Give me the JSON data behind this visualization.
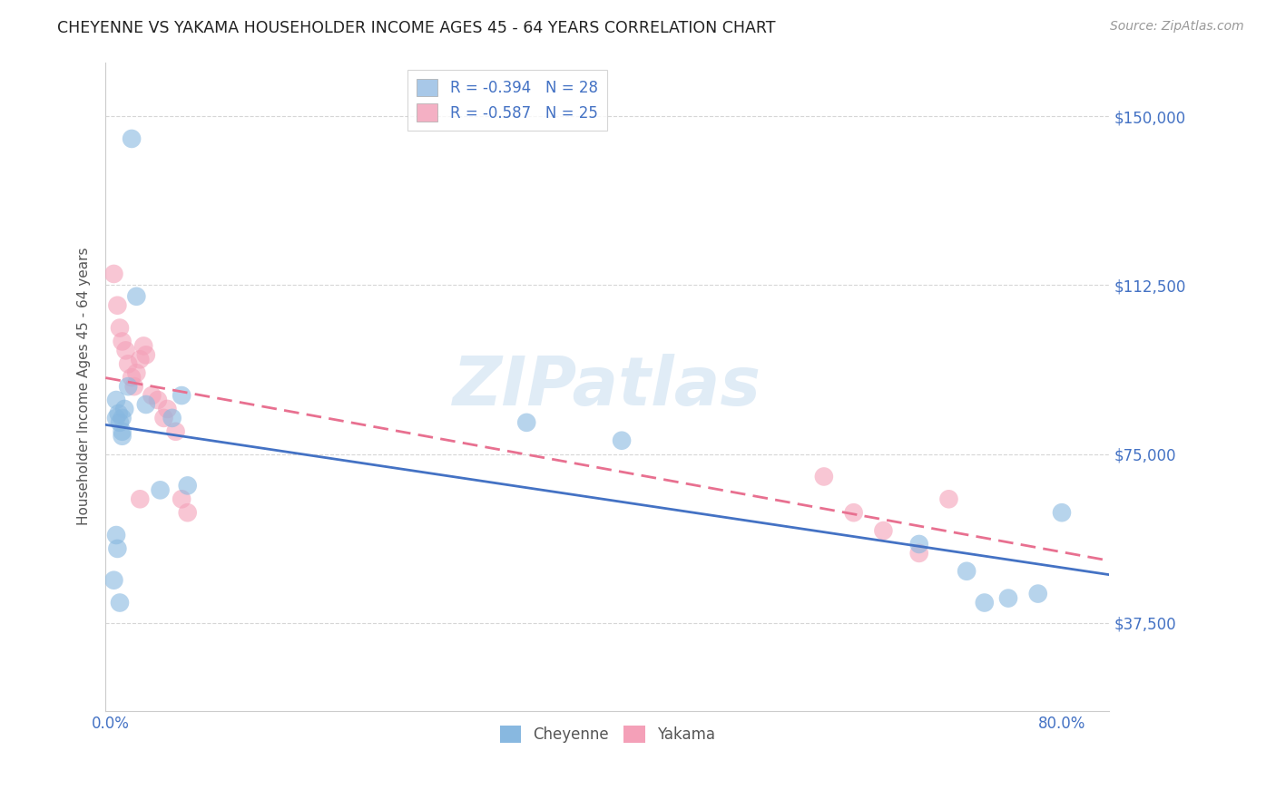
{
  "title": "CHEYENNE VS YAKAMA HOUSEHOLDER INCOME AGES 45 - 64 YEARS CORRELATION CHART",
  "source": "Source: ZipAtlas.com",
  "ylabel": "Householder Income Ages 45 - 64 years",
  "ytick_labels": [
    "$37,500",
    "$75,000",
    "$112,500",
    "$150,000"
  ],
  "ytick_values": [
    37500,
    75000,
    112500,
    150000
  ],
  "ymin": 18000,
  "ymax": 162000,
  "xmin": -0.004,
  "xmax": 0.84,
  "watermark": "ZIPatlas",
  "legend_entries": [
    {
      "label": "R = -0.394   N = 28",
      "color": "#a8c8e8"
    },
    {
      "label": "R = -0.587   N = 25",
      "color": "#f4b0c4"
    }
  ],
  "cheyenne_color": "#88b8e0",
  "yakama_color": "#f4a0b8",
  "cheyenne_line_color": "#4472c4",
  "yakama_line_color": "#e87090",
  "cheyenne_x": [
    0.018,
    0.005,
    0.005,
    0.007,
    0.008,
    0.01,
    0.01,
    0.01,
    0.012,
    0.015,
    0.022,
    0.03,
    0.052,
    0.06,
    0.005,
    0.006,
    0.003,
    0.008,
    0.35,
    0.43,
    0.68,
    0.72,
    0.735,
    0.755,
    0.78,
    0.8,
    0.042,
    0.065
  ],
  "cheyenne_y": [
    145000,
    87000,
    83000,
    84000,
    82000,
    83000,
    80000,
    79000,
    85000,
    90000,
    110000,
    86000,
    83000,
    88000,
    57000,
    54000,
    47000,
    42000,
    82000,
    78000,
    55000,
    49000,
    42000,
    43000,
    44000,
    62000,
    67000,
    68000
  ],
  "yakama_x": [
    0.003,
    0.006,
    0.008,
    0.01,
    0.013,
    0.015,
    0.018,
    0.02,
    0.022,
    0.025,
    0.028,
    0.03,
    0.035,
    0.04,
    0.045,
    0.048,
    0.055,
    0.06,
    0.065,
    0.6,
    0.625,
    0.65,
    0.68,
    0.705,
    0.025
  ],
  "yakama_y": [
    115000,
    108000,
    103000,
    100000,
    98000,
    95000,
    92000,
    90000,
    93000,
    96000,
    99000,
    97000,
    88000,
    87000,
    83000,
    85000,
    80000,
    65000,
    62000,
    70000,
    62000,
    58000,
    53000,
    65000,
    65000
  ]
}
